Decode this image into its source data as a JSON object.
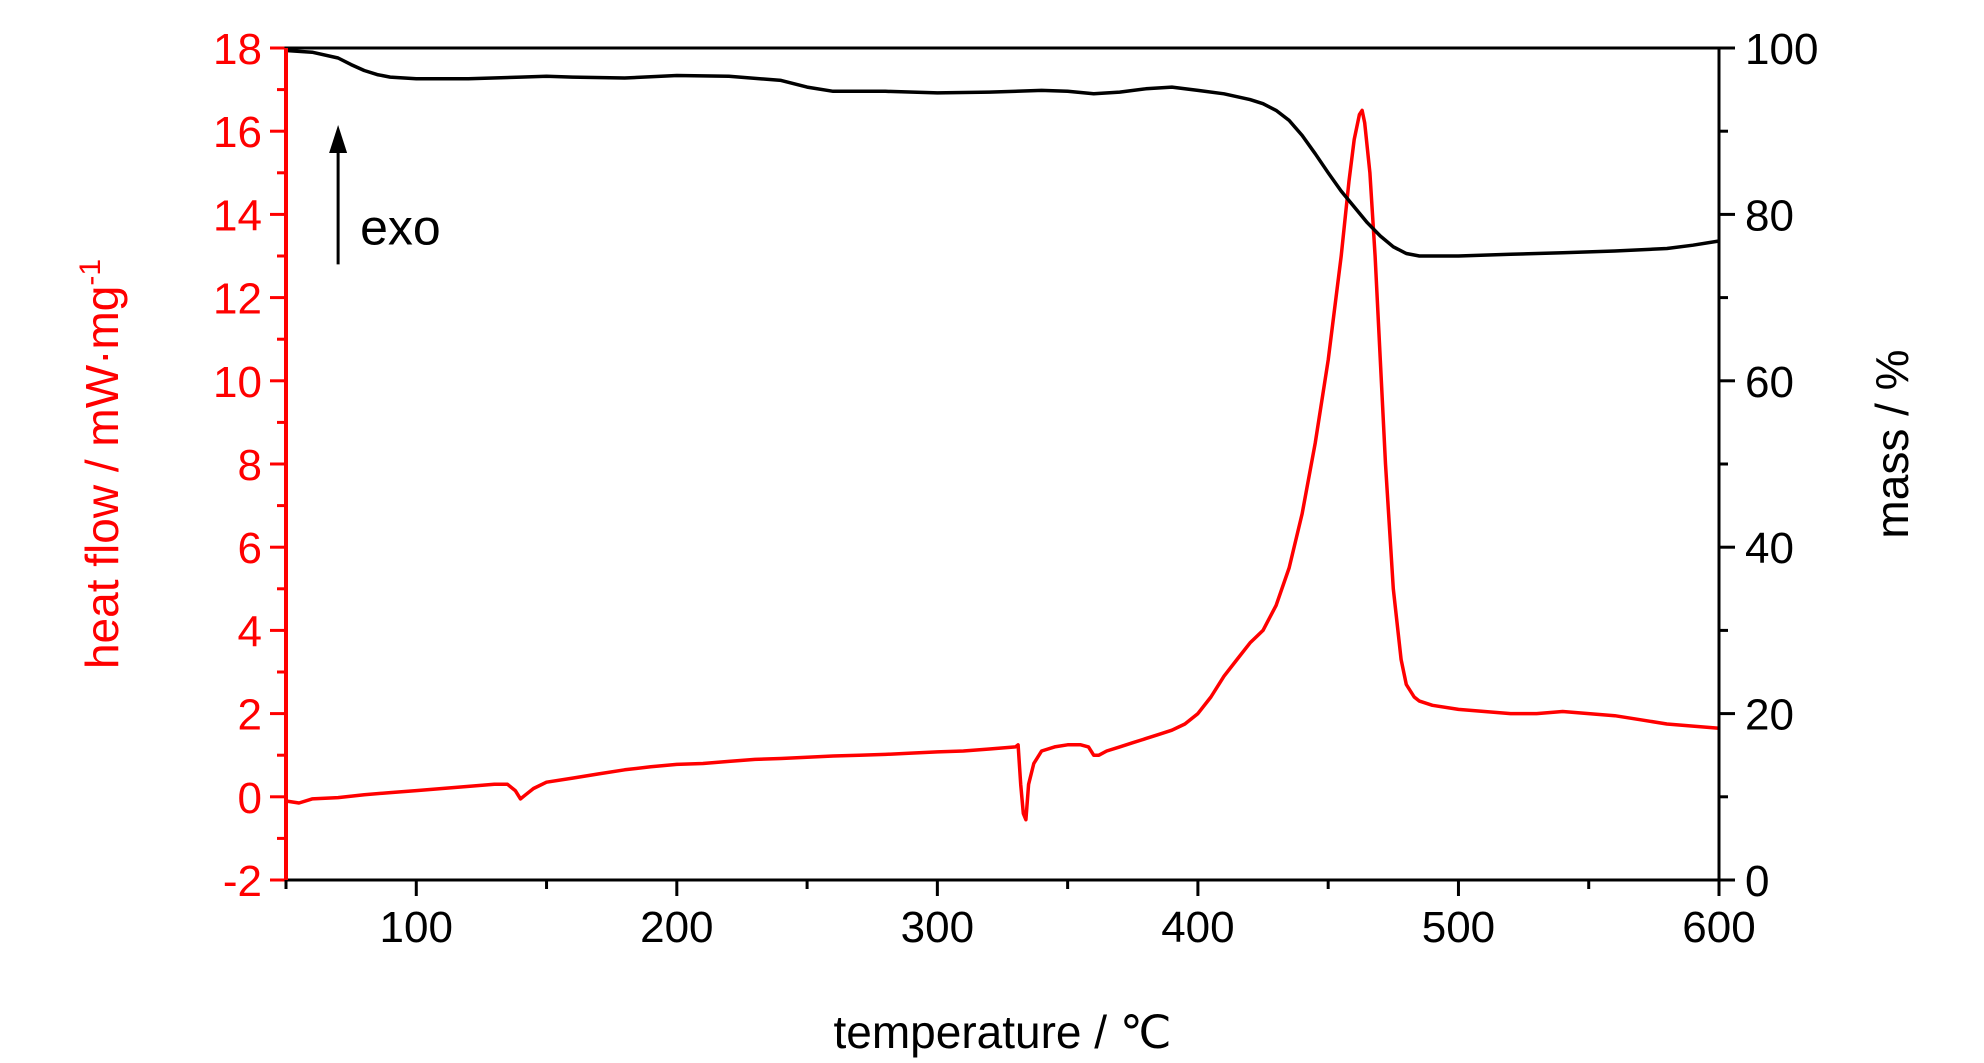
{
  "chart_data": {
    "type": "line",
    "xlabel": "temperature / ℃",
    "ylabel_left": "heat flow / mW·mg",
    "ylabel_left_sup": "-1",
    "ylabel_right": "mass / %",
    "xlim": [
      50,
      600
    ],
    "ylim_left": [
      -2,
      18
    ],
    "ylim_right": [
      0,
      100
    ],
    "x_ticks": [
      100,
      200,
      300,
      400,
      500,
      600
    ],
    "y_left_ticks": [
      -2,
      0,
      2,
      4,
      6,
      8,
      10,
      12,
      14,
      16,
      18
    ],
    "y_right_ticks": [
      0,
      20,
      40,
      60,
      80,
      100
    ],
    "grid": false,
    "annotation": {
      "text": "exo",
      "x": 70,
      "y_left": 14.0,
      "arrow_to_y_left": 16.1
    },
    "colors": {
      "heat_flow": "#ff0000",
      "mass": "#000000"
    },
    "series": [
      {
        "axis": "left",
        "color": "#ff0000",
        "x": [
          50,
          55,
          60,
          70,
          80,
          90,
          100,
          110,
          120,
          130,
          135,
          138,
          140,
          142,
          145,
          150,
          160,
          170,
          180,
          190,
          200,
          210,
          220,
          230,
          240,
          250,
          260,
          270,
          280,
          290,
          300,
          310,
          320,
          330,
          331,
          332,
          333,
          334,
          335,
          337,
          340,
          345,
          350,
          355,
          358,
          360,
          362,
          365,
          370,
          375,
          380,
          385,
          390,
          395,
          400,
          405,
          410,
          415,
          420,
          425,
          430,
          435,
          440,
          445,
          450,
          455,
          458,
          460,
          462,
          463,
          464,
          466,
          468,
          470,
          472,
          475,
          478,
          480,
          483,
          485,
          490,
          500,
          510,
          520,
          530,
          540,
          550,
          560,
          570,
          580,
          590,
          600
        ],
        "y": [
          -0.1,
          -0.15,
          -0.05,
          -0.02,
          0.05,
          0.1,
          0.15,
          0.2,
          0.25,
          0.3,
          0.3,
          0.15,
          -0.05,
          0.05,
          0.2,
          0.35,
          0.45,
          0.55,
          0.65,
          0.72,
          0.78,
          0.8,
          0.85,
          0.9,
          0.92,
          0.95,
          0.98,
          1.0,
          1.02,
          1.05,
          1.08,
          1.1,
          1.15,
          1.2,
          1.25,
          0.3,
          -0.4,
          -0.55,
          0.3,
          0.8,
          1.1,
          1.2,
          1.25,
          1.25,
          1.2,
          1.0,
          1.0,
          1.1,
          1.2,
          1.3,
          1.4,
          1.5,
          1.6,
          1.75,
          2.0,
          2.4,
          2.9,
          3.3,
          3.7,
          4.0,
          4.6,
          5.5,
          6.8,
          8.5,
          10.5,
          13.0,
          14.8,
          15.8,
          16.4,
          16.5,
          16.2,
          15.0,
          13.0,
          10.5,
          8.0,
          5.0,
          3.3,
          2.7,
          2.4,
          2.3,
          2.2,
          2.1,
          2.05,
          2.0,
          2.0,
          2.05,
          2.0,
          1.95,
          1.85,
          1.75,
          1.7,
          1.65
        ]
      },
      {
        "axis": "right",
        "color": "#000000",
        "x": [
          50,
          60,
          70,
          75,
          80,
          85,
          90,
          100,
          120,
          140,
          150,
          160,
          180,
          200,
          220,
          240,
          250,
          260,
          280,
          300,
          320,
          340,
          350,
          360,
          370,
          380,
          390,
          400,
          410,
          420,
          425,
          430,
          435,
          440,
          445,
          450,
          455,
          460,
          465,
          470,
          475,
          480,
          485,
          490,
          500,
          520,
          540,
          560,
          580,
          590,
          600
        ],
        "y": [
          99.7,
          99.5,
          98.8,
          98.0,
          97.3,
          96.8,
          96.5,
          96.3,
          96.3,
          96.5,
          96.6,
          96.5,
          96.4,
          96.7,
          96.6,
          96.1,
          95.3,
          94.8,
          94.8,
          94.6,
          94.7,
          94.9,
          94.8,
          94.5,
          94.7,
          95.1,
          95.3,
          94.9,
          94.5,
          93.8,
          93.3,
          92.5,
          91.3,
          89.5,
          87.3,
          85.0,
          82.8,
          80.9,
          79.0,
          77.4,
          76.1,
          75.3,
          75.0,
          75.0,
          75.0,
          75.2,
          75.4,
          75.6,
          75.9,
          76.3,
          76.8
        ]
      }
    ]
  }
}
